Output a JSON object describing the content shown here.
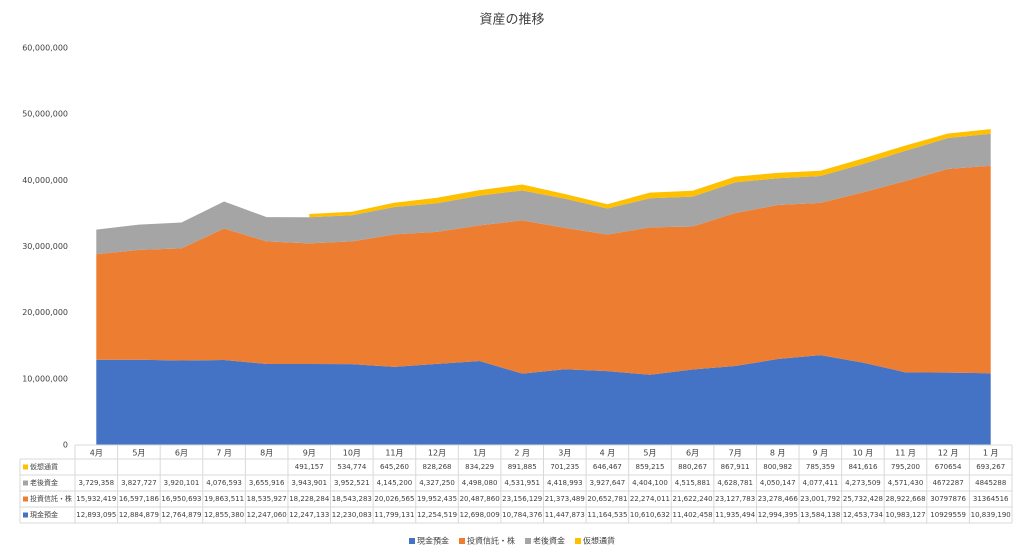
{
  "chart_data": {
    "type": "stacked_area",
    "title": "資産の推移",
    "categories": [
      "4月",
      "5月",
      "6月",
      "7 月",
      "8月",
      "9月",
      "10月",
      "11月",
      "12月",
      "1月",
      "2 月",
      "3月",
      "4 月",
      "5月",
      "6月",
      "7月",
      "8 月",
      "9 月",
      "10 月",
      "11 月",
      "12 月",
      "1 月"
    ],
    "ylim": [
      0,
      60000000
    ],
    "yticks": [
      0,
      {
        "value": 10000000,
        "label": "10,000,000"
      },
      {
        "value": 20000000,
        "label": "20,000,000"
      },
      {
        "value": 30000000,
        "label": "30,000,000"
      },
      {
        "value": 40000000,
        "label": "40,000,000"
      },
      {
        "value": 50000000,
        "label": "50,000,000"
      },
      {
        "value": 60000000,
        "label": "60,000,000"
      }
    ],
    "grid": false,
    "legend": "bottom",
    "series": [
      {
        "name": "現金預金",
        "color": "#4472c4",
        "values": [
          12893095,
          12884879,
          12764879,
          12855380,
          12247060,
          12247133,
          12230083,
          11799131,
          12254519,
          12698009,
          10784376,
          11447873,
          11164535,
          10610632,
          11402458,
          11935494,
          12994395,
          13584138,
          12453734,
          10983127,
          10929559,
          10839190
        ],
        "value_labels": [
          "12,893,095",
          "12,884,879",
          "12,764,879",
          "12,855,380",
          "12,247,060",
          "12,247,133",
          "12,230,083",
          "11,799,131",
          "12,254,519",
          "12,698,009",
          "10,784,376",
          "11,447,873",
          "11,164,535",
          "10,610,632",
          "11,402,458",
          "11,935,494",
          "12,994,395",
          "13,584,138",
          "12,453,734",
          "10,983,127",
          "10929559",
          "10,839,190"
        ]
      },
      {
        "name": "投資信託・株",
        "color": "#ed7d31",
        "values": [
          15932419,
          16597186,
          16950693,
          19863511,
          18535927,
          18228284,
          18543283,
          20026565,
          19952435,
          20487860,
          23156129,
          21373489,
          20652781,
          22274011,
          21622240,
          23127783,
          23278466,
          23001792,
          25732428,
          28922668,
          30797876,
          31364516
        ],
        "value_labels": [
          "15,932,419",
          "16,597,186",
          "16,950,693",
          "19,863,511",
          "18,535,927",
          "18,228,284",
          "18,543,283",
          "20,026,565",
          "19,952,435",
          "20,487,860",
          "23,156,129",
          "21,373,489",
          "20,652,781",
          "22,274,011",
          "21,622,240",
          "23,127,783",
          "23,278,466",
          "23,001,792",
          "25,732,428",
          "28,922,668",
          "30797876",
          "31364516"
        ]
      },
      {
        "name": "老後資金",
        "color": "#a5a5a5",
        "values": [
          3729358,
          3827727,
          3920101,
          4076593,
          3655916,
          3943901,
          3952521,
          4145200,
          4327250,
          4498080,
          4531951,
          4418993,
          3927647,
          4404100,
          4515881,
          4628781,
          4050147,
          4077411,
          4273509,
          4571430,
          4672287,
          4845288
        ],
        "value_labels": [
          "3,729,358",
          "3,827,727",
          "3,920,101",
          "4,076,593",
          "3,655,916",
          "3,943,901",
          "3,952,521",
          "4,145,200",
          "4,327,250",
          "4,498,080",
          "4,531,951",
          "4,418,993",
          "3,927,647",
          "4,404,100",
          "4,515,881",
          "4,628,781",
          "4,050,147",
          "4,077,411",
          "4,273,509",
          "4,571,430",
          "4672287",
          "4845288"
        ]
      },
      {
        "name": "仮想通貨",
        "color": "#ffc000",
        "values": [
          null,
          null,
          null,
          null,
          null,
          491157,
          534774,
          645260,
          828268,
          834229,
          891885,
          701235,
          646467,
          859215,
          880267,
          867911,
          800982,
          785359,
          841616,
          795200,
          670654,
          693267
        ],
        "value_labels": [
          null,
          null,
          null,
          null,
          null,
          "491,157",
          "534,774",
          "645,260",
          "828,268",
          "834,229",
          "891,885",
          "701,235",
          "646,467",
          "859,215",
          "880,267",
          "867,911",
          "800,982",
          "785,359",
          "841,616",
          "795,200",
          "670654",
          "693,267"
        ]
      }
    ]
  }
}
